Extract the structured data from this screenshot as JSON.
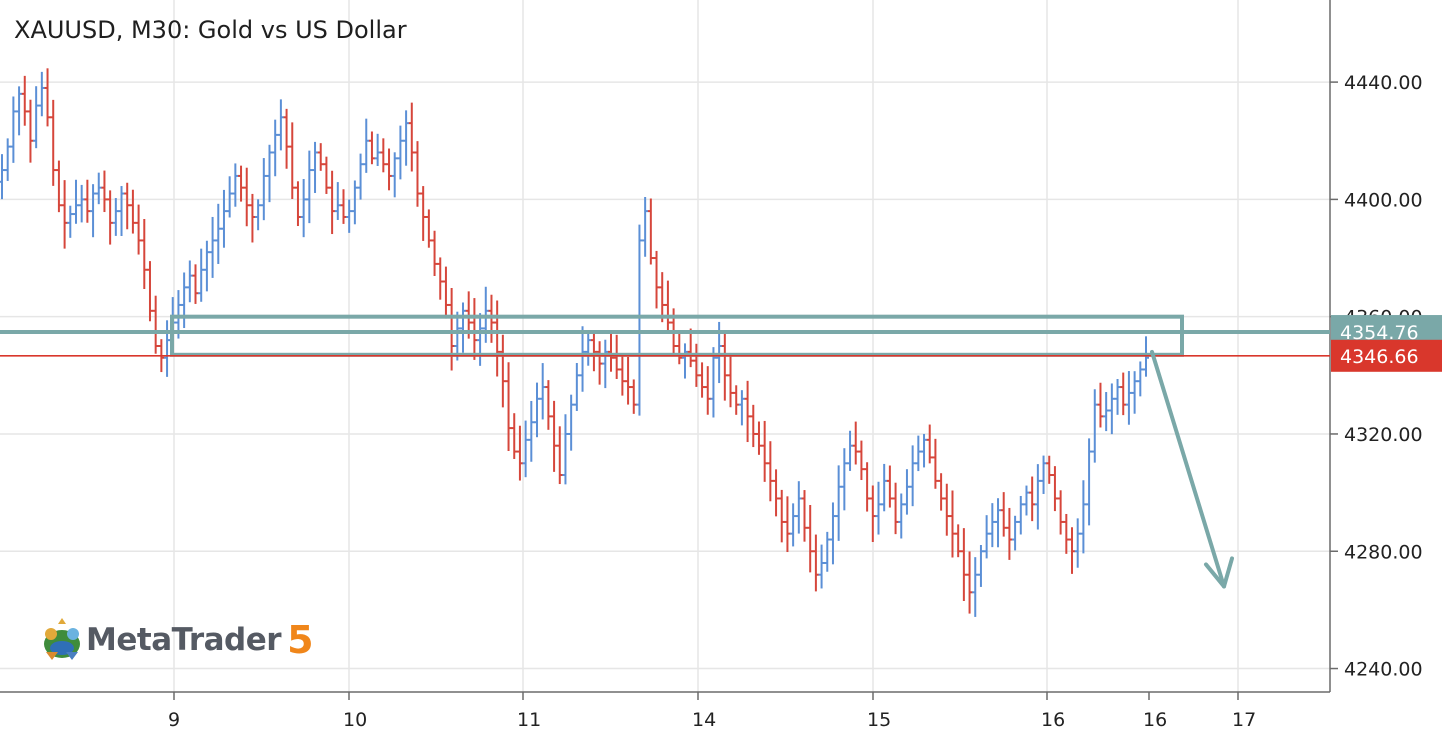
{
  "window": {
    "title": "XAUUSD, M30: Gold vs US Dollar"
  },
  "logo": {
    "text": "MetaTrader",
    "number": "5"
  },
  "colors": {
    "bull": "#5b8fd6",
    "bear": "#d6463b",
    "zone": "#7aa8a8",
    "grid": "#e6e6e6",
    "bid_line": "#d9372c",
    "ask_badge": "#7aa8a8"
  },
  "chart_data": {
    "type": "ohlc-bars",
    "symbol": "XAUUSD",
    "timeframe": "M30",
    "title": "XAUUSD, M30: Gold vs US Dollar",
    "ylim": [
      4232,
      4468
    ],
    "y_ticks": [
      "4240.00",
      "4280.00",
      "4320.00",
      "4360.00",
      "4400.00",
      "4440.00"
    ],
    "y_tick_values": [
      4240,
      4280,
      4320,
      4360,
      4400,
      4440
    ],
    "x_ticks": [
      "9",
      "10",
      "11",
      "14",
      "15",
      "16",
      "16",
      "17"
    ],
    "grid": true,
    "price_labels": {
      "ask": "4354.76",
      "bid": "4346.66"
    },
    "zone": {
      "low": 4347,
      "high": 4360
    },
    "arrow": {
      "start_price": 4348,
      "end_price": 4268,
      "direction": "down"
    },
    "closes": [
      4410,
      4418,
      4430,
      4436,
      4430,
      4420,
      4432,
      4438,
      4428,
      4410,
      4398,
      4392,
      4395,
      4398,
      4400,
      4396,
      4402,
      4404,
      4400,
      4392,
      4396,
      4402,
      4398,
      4392,
      4386,
      4376,
      4362,
      4350,
      4346,
      4352,
      4358,
      4364,
      4370,
      4374,
      4368,
      4376,
      4382,
      4386,
      4390,
      4396,
      4402,
      4408,
      4404,
      4398,
      4394,
      4398,
      4408,
      4416,
      4422,
      4428,
      4418,
      4404,
      4394,
      4400,
      4410,
      4416,
      4412,
      4404,
      4396,
      4398,
      4394,
      4396,
      4404,
      4412,
      4420,
      4414,
      4416,
      4412,
      4408,
      4414,
      4420,
      4426,
      4416,
      4402,
      4394,
      4386,
      4378,
      4372,
      4364,
      4350,
      4356,
      4362,
      4358,
      4352,
      4356,
      4362,
      4358,
      4348,
      4338,
      4322,
      4314,
      4310,
      4318,
      4324,
      4332,
      4336,
      4326,
      4316,
      4306,
      4320,
      4330,
      4340,
      4348,
      4352,
      4348,
      4344,
      4348,
      4346,
      4342,
      4338,
      4336,
      4330,
      4386,
      4396,
      4380,
      4370,
      4364,
      4358,
      4350,
      4346,
      4348,
      4345,
      4340,
      4336,
      4332,
      4346,
      4350,
      4340,
      4334,
      4330,
      4332,
      4326,
      4320,
      4316,
      4310,
      4304,
      4298,
      4290,
      4286,
      4292,
      4298,
      4288,
      4280,
      4272,
      4276,
      4284,
      4292,
      4302,
      4310,
      4316,
      4314,
      4308,
      4298,
      4292,
      4296,
      4304,
      4298,
      4290,
      4296,
      4302,
      4310,
      4314,
      4318,
      4312,
      4304,
      4298,
      4292,
      4286,
      4280,
      4272,
      4266,
      4272,
      4280,
      4286,
      4290,
      4294,
      4288,
      4284,
      4290,
      4296,
      4300,
      4296,
      4304,
      4310,
      4306,
      4298,
      4290,
      4284,
      4280,
      4286,
      4296,
      4314,
      4330,
      4326,
      4328,
      4332,
      4336,
      4330,
      4334,
      4338,
      4342,
      4346
    ]
  },
  "drawing": {
    "zone_note": "",
    "arrow_note": ""
  }
}
